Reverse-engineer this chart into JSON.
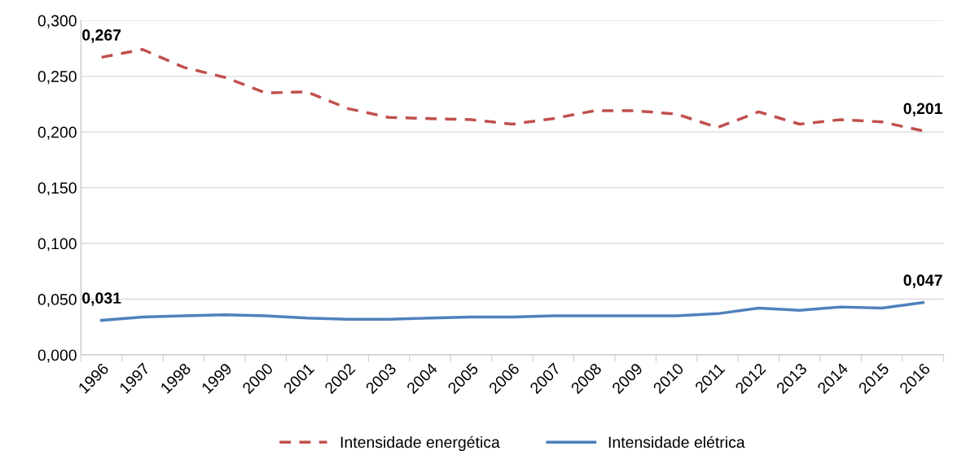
{
  "chart_data": {
    "type": "line",
    "categories": [
      "1996",
      "1997",
      "1998",
      "1999",
      "2000",
      "2001",
      "2002",
      "2003",
      "2004",
      "2005",
      "2006",
      "2007",
      "2008",
      "2009",
      "2010",
      "2011",
      "2012",
      "2013",
      "2014",
      "2015",
      "2016"
    ],
    "series": [
      {
        "name": "Intensidade energética",
        "color": "#c0504d",
        "line_style": "dashed",
        "values": [
          0.267,
          0.274,
          0.258,
          0.249,
          0.235,
          0.236,
          0.221,
          0.213,
          0.212,
          0.211,
          0.207,
          0.212,
          0.219,
          0.219,
          0.216,
          0.204,
          0.218,
          0.207,
          0.211,
          0.209,
          0.201
        ],
        "value_labels": [
          "0,267",
          null,
          null,
          null,
          null,
          null,
          null,
          null,
          null,
          null,
          null,
          null,
          null,
          null,
          null,
          null,
          null,
          null,
          null,
          null,
          "0,201"
        ]
      },
      {
        "name": "Intensidade elétrica",
        "color": "#4f81bd",
        "line_style": "solid",
        "values": [
          0.031,
          0.034,
          0.035,
          0.036,
          0.035,
          0.033,
          0.032,
          0.032,
          0.033,
          0.034,
          0.034,
          0.035,
          0.035,
          0.035,
          0.035,
          0.037,
          0.042,
          0.04,
          0.043,
          0.042,
          0.047
        ],
        "value_labels": [
          "0,031",
          null,
          null,
          null,
          null,
          null,
          null,
          null,
          null,
          null,
          null,
          null,
          null,
          null,
          null,
          null,
          null,
          null,
          null,
          null,
          "0,047"
        ]
      }
    ],
    "ylim": [
      0,
      0.3
    ],
    "yticks": [
      {
        "value": 0,
        "label": "0,000"
      },
      {
        "value": 0.05,
        "label": "0,050"
      },
      {
        "value": 0.1,
        "label": "0,100"
      },
      {
        "value": 0.15,
        "label": "0,150"
      },
      {
        "value": 0.2,
        "label": "0,200"
      },
      {
        "value": 0.25,
        "label": "0,250"
      },
      {
        "value": 0.3,
        "label": "0,300"
      }
    ],
    "grid": "y",
    "legend": "bottom",
    "marker": "none"
  }
}
